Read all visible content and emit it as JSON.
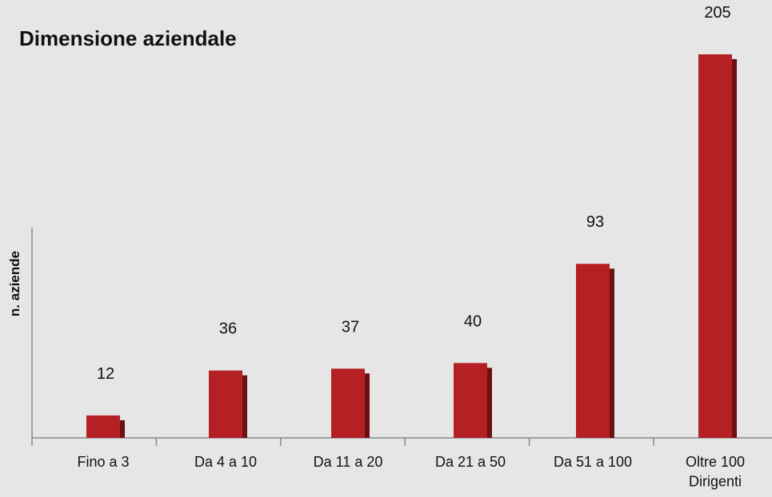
{
  "chart_data": {
    "type": "bar",
    "title": "Dimensione aziendale",
    "y_label": "n. aziende",
    "categories": [
      "Fino a 3",
      "Da 4 a 10",
      "Da 11 a 20",
      "Da 21 a 50",
      "Da 51 a 100",
      "Oltre 100\nDirigenti"
    ],
    "values": [
      12,
      36,
      37,
      40,
      93,
      205
    ],
    "color": "#b52025",
    "shadow_color": "#6b1013"
  }
}
